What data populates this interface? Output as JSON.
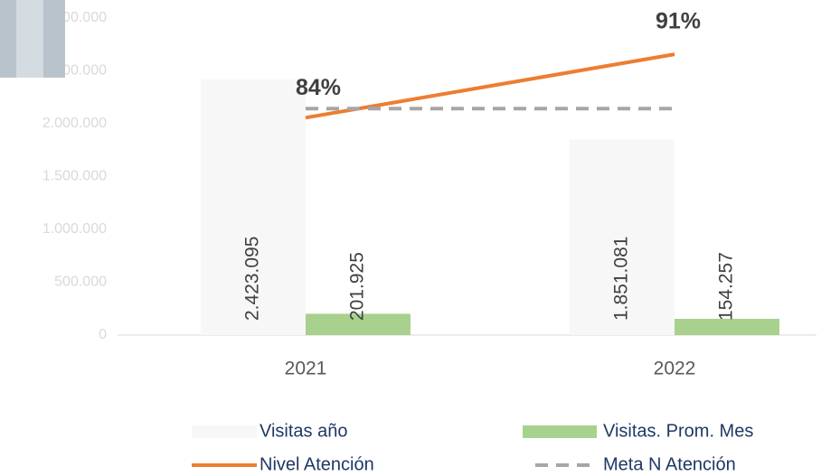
{
  "chart_data": {
    "type": "bar",
    "categories": [
      "2021",
      "2022"
    ],
    "series": [
      {
        "name": "Visitas año",
        "color": "#f7f7f7",
        "values": [
          2423095,
          1851081
        ],
        "value_labels": [
          "2.423.095",
          "1.851.081"
        ]
      },
      {
        "name": "Visitas. Prom. Mes",
        "color": "#a9d18e",
        "values": [
          201925,
          154257
        ],
        "value_labels": [
          "201.925",
          "154.257"
        ]
      },
      {
        "name": "Nivel Atención",
        "type": "line",
        "color": "#ed7d31",
        "axis": "y2",
        "values": [
          84,
          91
        ],
        "value_labels": [
          "84%",
          "91%"
        ]
      },
      {
        "name": "Meta N Atención",
        "type": "line",
        "dashed": true,
        "color": "#a6a6a6",
        "axis": "y2",
        "values": [
          85,
          85
        ]
      }
    ],
    "ylim": [
      0,
      3000000
    ],
    "yticks": [
      0,
      {
        "value": 500000,
        "label": "500.000"
      },
      {
        "value": 1000000,
        "label": "1.000.000"
      },
      {
        "value": 1500000,
        "label": "1.500.000"
      },
      {
        "value": 2000000,
        "label": "2.000.000"
      },
      {
        "value": 2500000,
        "label": "2.500.000"
      },
      {
        "value": 3000000,
        "label": "3.000.000"
      }
    ],
    "y2lim": [
      60,
      95
    ],
    "legend": "bottom"
  }
}
